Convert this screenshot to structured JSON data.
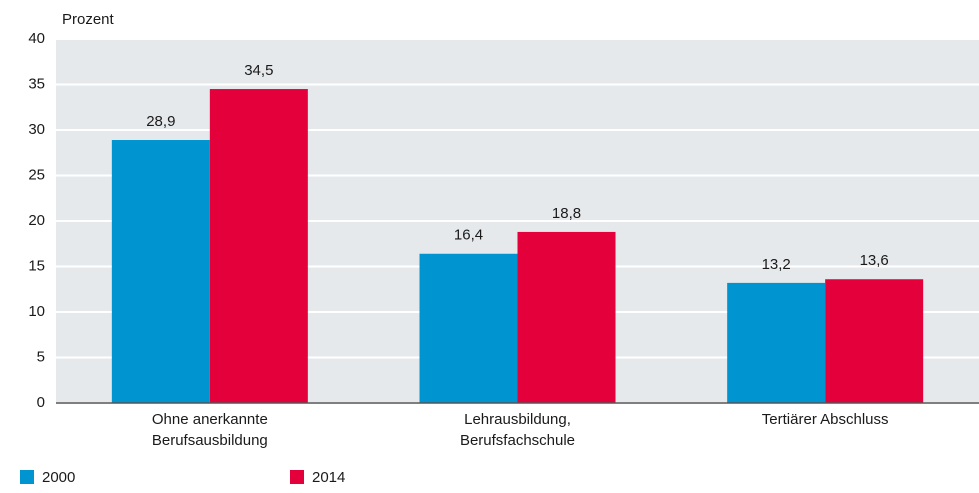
{
  "chart_data": {
    "type": "bar",
    "y_axis_label": "Prozent",
    "categories": [
      [
        "Ohne anerkannte",
        "Berufsausbildung"
      ],
      [
        "Lehrausbildung,",
        "Berufsfachschule"
      ],
      [
        "Tertiärer Abschluss"
      ]
    ],
    "series": [
      {
        "name": "2000",
        "color": "#0095d0",
        "values": [
          28.9,
          16.4,
          13.2
        ],
        "value_labels": [
          "28,9",
          "16,4",
          "13,2"
        ]
      },
      {
        "name": "2014",
        "color": "#e4003a",
        "values": [
          34.5,
          18.8,
          13.6
        ],
        "value_labels": [
          "34,5",
          "18,8",
          "13,6"
        ]
      }
    ],
    "ylim": [
      0,
      40
    ],
    "yticks": [
      0,
      5,
      10,
      15,
      20,
      25,
      30,
      35,
      40
    ],
    "grid": true
  }
}
